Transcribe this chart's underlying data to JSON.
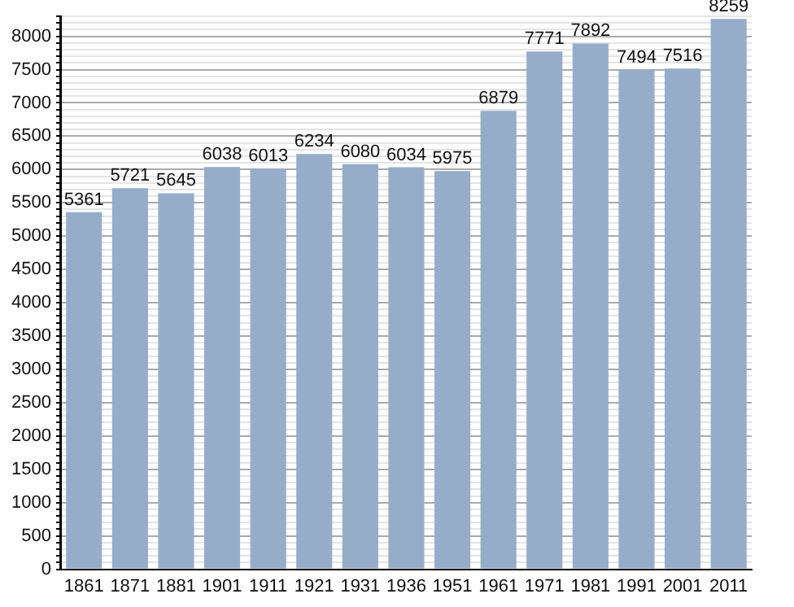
{
  "chart_data": {
    "type": "bar",
    "categories": [
      "1861",
      "1871",
      "1881",
      "1901",
      "1911",
      "1921",
      "1931",
      "1936",
      "1951",
      "1961",
      "1971",
      "1981",
      "1991",
      "2001",
      "2011"
    ],
    "values": [
      5361,
      5721,
      5645,
      6038,
      6013,
      6234,
      6080,
      6034,
      5975,
      6879,
      7771,
      7892,
      7494,
      7516,
      8259
    ],
    "color": "#95adc9",
    "data_labels": true,
    "grid": "y",
    "legend": false,
    "ylim": [
      0,
      8300
    ],
    "yticks": [
      0,
      {
        "value": 100,
        "label": null
      },
      {
        "value": 200,
        "label": null
      },
      {
        "value": 300,
        "label": null
      },
      {
        "value": 400,
        "label": null
      },
      500,
      {
        "value": 600,
        "label": null
      },
      {
        "value": 700,
        "label": null
      },
      {
        "value": 800,
        "label": null
      },
      {
        "value": 900,
        "label": null
      },
      1000,
      {
        "value": 1100,
        "label": null
      },
      {
        "value": 1200,
        "label": null
      },
      {
        "value": 1300,
        "label": null
      },
      {
        "value": 1400,
        "label": null
      },
      1500,
      {
        "value": 1600,
        "label": null
      },
      {
        "value": 1700,
        "label": null
      },
      {
        "value": 1800,
        "label": null
      },
      {
        "value": 1900,
        "label": null
      },
      2000,
      {
        "value": 2100,
        "label": null
      },
      {
        "value": 2200,
        "label": null
      },
      {
        "value": 2300,
        "label": null
      },
      {
        "value": 2400,
        "label": null
      },
      2500,
      {
        "value": 2600,
        "label": null
      },
      {
        "value": 2700,
        "label": null
      },
      {
        "value": 2800,
        "label": null
      },
      {
        "value": 2900,
        "label": null
      },
      3000,
      {
        "value": 3100,
        "label": null
      },
      {
        "value": 3200,
        "label": null
      },
      {
        "value": 3300,
        "label": null
      },
      {
        "value": 3400,
        "label": null
      },
      3500,
      {
        "value": 3600,
        "label": null
      },
      {
        "value": 3700,
        "label": null
      },
      {
        "value": 3800,
        "label": null
      },
      {
        "value": 3900,
        "label": null
      },
      4000,
      {
        "value": 4100,
        "label": null
      },
      {
        "value": 4200,
        "label": null
      },
      {
        "value": 4300,
        "label": null
      },
      {
        "value": 4400,
        "label": null
      },
      4500,
      {
        "value": 4600,
        "label": null
      },
      {
        "value": 4700,
        "label": null
      },
      {
        "value": 4800,
        "label": null
      },
      {
        "value": 4900,
        "label": null
      },
      5000,
      {
        "value": 5100,
        "label": null
      },
      {
        "value": 5200,
        "label": null
      },
      {
        "value": 5300,
        "label": null
      },
      {
        "value": 5400,
        "label": null
      },
      5500,
      {
        "value": 5600,
        "label": null
      },
      {
        "value": 5700,
        "label": null
      },
      {
        "value": 5800,
        "label": null
      },
      {
        "value": 5900,
        "label": null
      },
      6000,
      {
        "value": 6100,
        "label": null
      },
      {
        "value": 6200,
        "label": null
      },
      {
        "value": 6300,
        "label": null
      },
      {
        "value": 6400,
        "label": null
      },
      6500,
      {
        "value": 6600,
        "label": null
      },
      {
        "value": 6700,
        "label": null
      },
      {
        "value": 6800,
        "label": null
      },
      {
        "value": 6900,
        "label": null
      },
      7000,
      {
        "value": 7100,
        "label": null
      },
      {
        "value": 7200,
        "label": null
      },
      {
        "value": 7300,
        "label": null
      },
      {
        "value": 7400,
        "label": null
      },
      7500,
      {
        "value": 7600,
        "label": null
      },
      {
        "value": 7700,
        "label": null
      },
      {
        "value": 7800,
        "label": null
      },
      {
        "value": 7900,
        "label": null
      },
      8000,
      {
        "value": 8100,
        "label": null
      },
      {
        "value": 8200,
        "label": null
      },
      {
        "value": 8300,
        "label": null
      }
    ]
  }
}
